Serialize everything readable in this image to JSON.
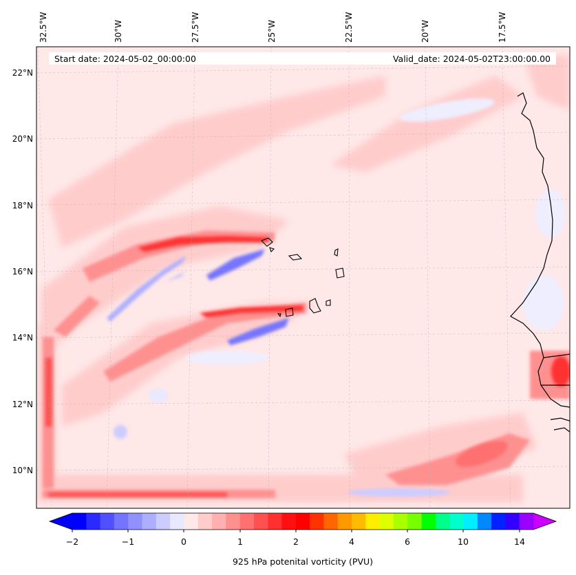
{
  "map": {
    "start_date": "Start date: 2024-05-02_00:00:00",
    "valid_date": "Valid_date: 2024-05-02T23:00:00.00",
    "lon_labels": [
      "32.5°W",
      "30°W",
      "27.5°W",
      "25°W",
      "22.5°W",
      "20°W",
      "17.5°W"
    ],
    "lat_labels": [
      "22°N",
      "20°N",
      "18°N",
      "16°N",
      "14°N",
      "12°N",
      "10°N"
    ]
  },
  "colorbar": {
    "label": "925 hPa potenital vorticity (PVU)",
    "tick_labels": [
      "−2",
      "−1",
      "0",
      "1",
      "2",
      "4",
      "6",
      "10",
      "14"
    ],
    "colors": [
      "#0000ff",
      "#2a2aff",
      "#5050ff",
      "#7474ff",
      "#9090ff",
      "#aeaeff",
      "#ccccff",
      "#e8e8ff",
      "#ffe8e8",
      "#ffcccc",
      "#ffb0b0",
      "#ff9090",
      "#ff7070",
      "#ff5050",
      "#ff3030",
      "#ff1010",
      "#ff0000",
      "#ff3300",
      "#ff6600",
      "#ff9900",
      "#ffbb00",
      "#ffee00",
      "#ddff00",
      "#aaff00",
      "#77ff00",
      "#00ff00",
      "#00ff88",
      "#00ffcc",
      "#00eeff",
      "#0088ff",
      "#0022ff",
      "#3300ff",
      "#9900ff"
    ],
    "under_color": "#0000ff",
    "over_color": "#cc00ff"
  }
}
